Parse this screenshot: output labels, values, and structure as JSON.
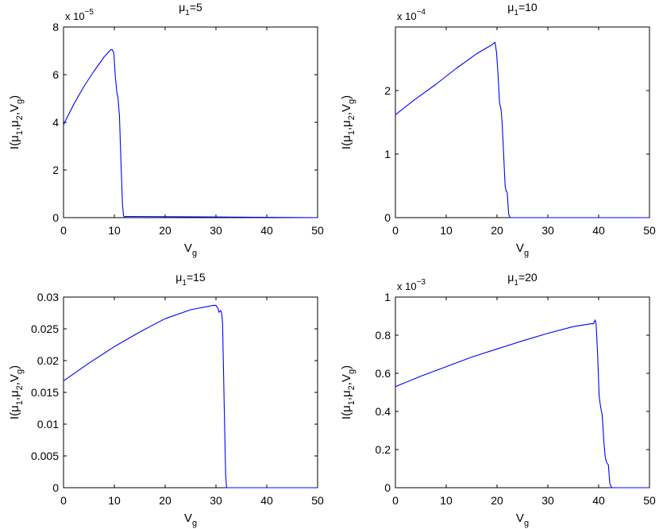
{
  "chart_data": [
    {
      "type": "line",
      "title": "μ1=5",
      "title_parts": {
        "base": "μ",
        "sub": "1",
        "rest": "=5"
      },
      "xlabel": "Vg",
      "xlabel_parts": {
        "base": "V",
        "sub": "g"
      },
      "ylabel": "I(μ1,μ2,Vg)",
      "xlim": [
        0,
        50
      ],
      "ylim": [
        0,
        8
      ],
      "xticks": [
        0,
        10,
        20,
        30,
        40,
        50
      ],
      "yticks": [
        0,
        2,
        4,
        6,
        8
      ],
      "exponent": {
        "base": "x 10",
        "power": "−5"
      },
      "grid": false,
      "line_color": "#0000ff",
      "series": [
        {
          "x": [
            0,
            2,
            4,
            6,
            8,
            9.3,
            9.6,
            9.9,
            10.2,
            10.5,
            10.7,
            11.0,
            11.3,
            11.6,
            11.8,
            12,
            12.2,
            50
          ],
          "y": [
            3.9,
            4.75,
            5.5,
            6.15,
            6.75,
            7.05,
            7.05,
            6.9,
            5.9,
            5.25,
            5.05,
            4.3,
            2.4,
            0.6,
            0.1,
            0.0,
            0.05,
            0.0
          ]
        }
      ]
    },
    {
      "type": "line",
      "title": "μ1=10",
      "title_parts": {
        "base": "μ",
        "sub": "1",
        "rest": "=10"
      },
      "xlabel": "Vg",
      "xlabel_parts": {
        "base": "V",
        "sub": "g"
      },
      "ylabel": "I(μ1,μ2,Vg)",
      "xlim": [
        0,
        50
      ],
      "ylim": [
        0,
        3
      ],
      "xticks": [
        0,
        10,
        20,
        30,
        40,
        50
      ],
      "yticks": [
        0,
        1,
        2
      ],
      "exponent": {
        "base": "x 10",
        "power": "−4"
      },
      "grid": false,
      "line_color": "#0000ff",
      "series": [
        {
          "x": [
            0,
            4,
            8,
            12,
            16,
            19.0,
            19.3,
            19.6,
            19.9,
            20.2,
            20.5,
            20.8,
            21.0,
            21.3,
            21.6,
            21.8,
            22.0,
            22.3,
            22.6,
            50
          ],
          "y": [
            1.62,
            1.87,
            2.1,
            2.35,
            2.58,
            2.72,
            2.74,
            2.76,
            2.6,
            2.25,
            1.8,
            1.7,
            1.5,
            1.0,
            0.5,
            0.42,
            0.4,
            0.05,
            0.0,
            0.0
          ]
        }
      ]
    },
    {
      "type": "line",
      "title": "μ1=15",
      "title_parts": {
        "base": "μ",
        "sub": "1",
        "rest": "=15"
      },
      "xlabel": "Vg",
      "xlabel_parts": {
        "base": "V",
        "sub": "g"
      },
      "ylabel": "I(μ1,μ2,Vg)",
      "xlim": [
        0,
        50
      ],
      "ylim": [
        0,
        0.03
      ],
      "xticks": [
        0,
        10,
        20,
        30,
        40,
        50
      ],
      "yticks": [
        0,
        0.005,
        0.01,
        0.015,
        0.02,
        0.025,
        0.03
      ],
      "ytick_labels": [
        "0",
        "0.005",
        "0.01",
        "0.015",
        "0.02",
        "0.025",
        "0.03"
      ],
      "grid": false,
      "line_color": "#0000ff",
      "series": [
        {
          "x": [
            0,
            5,
            10,
            15,
            20,
            25,
            29.5,
            30.0,
            30.4,
            30.6,
            30.9,
            31.1,
            31.3,
            31.6,
            31.9,
            32.1,
            50
          ],
          "y": [
            0.0168,
            0.0196,
            0.0222,
            0.0245,
            0.0266,
            0.028,
            0.0287,
            0.0287,
            0.0282,
            0.0276,
            0.0279,
            0.0276,
            0.026,
            0.014,
            0.002,
            0.0,
            0.0
          ]
        }
      ]
    },
    {
      "type": "line",
      "title": "μ1=20",
      "title_parts": {
        "base": "μ",
        "sub": "1",
        "rest": "=20"
      },
      "xlabel": "Vg",
      "xlabel_parts": {
        "base": "V",
        "sub": "g"
      },
      "ylabel": "I(μ1,μ2,Vg)",
      "xlim": [
        0,
        50
      ],
      "ylim": [
        0,
        1
      ],
      "xticks": [
        0,
        10,
        20,
        30,
        40,
        50
      ],
      "yticks": [
        0,
        0.2,
        0.4,
        0.6,
        0.8,
        1
      ],
      "ytick_labels": [
        "0",
        "0.2",
        "0.4",
        "0.6",
        "0.8",
        "1"
      ],
      "exponent": {
        "base": "x 10",
        "power": "−3"
      },
      "grid": false,
      "line_color": "#0000ff",
      "series": [
        {
          "x": [
            0,
            5,
            10,
            15,
            20,
            25,
            30,
            35,
            38.5,
            39.0,
            39.3,
            39.5,
            39.8,
            40.1,
            40.4,
            40.7,
            41.0,
            41.3,
            41.6,
            41.9,
            42.2,
            42.6,
            50
          ],
          "y": [
            0.53,
            0.585,
            0.635,
            0.685,
            0.728,
            0.77,
            0.81,
            0.845,
            0.86,
            0.86,
            0.88,
            0.86,
            0.7,
            0.48,
            0.42,
            0.38,
            0.25,
            0.16,
            0.13,
            0.12,
            0.02,
            0.0,
            0.0
          ]
        }
      ]
    }
  ]
}
